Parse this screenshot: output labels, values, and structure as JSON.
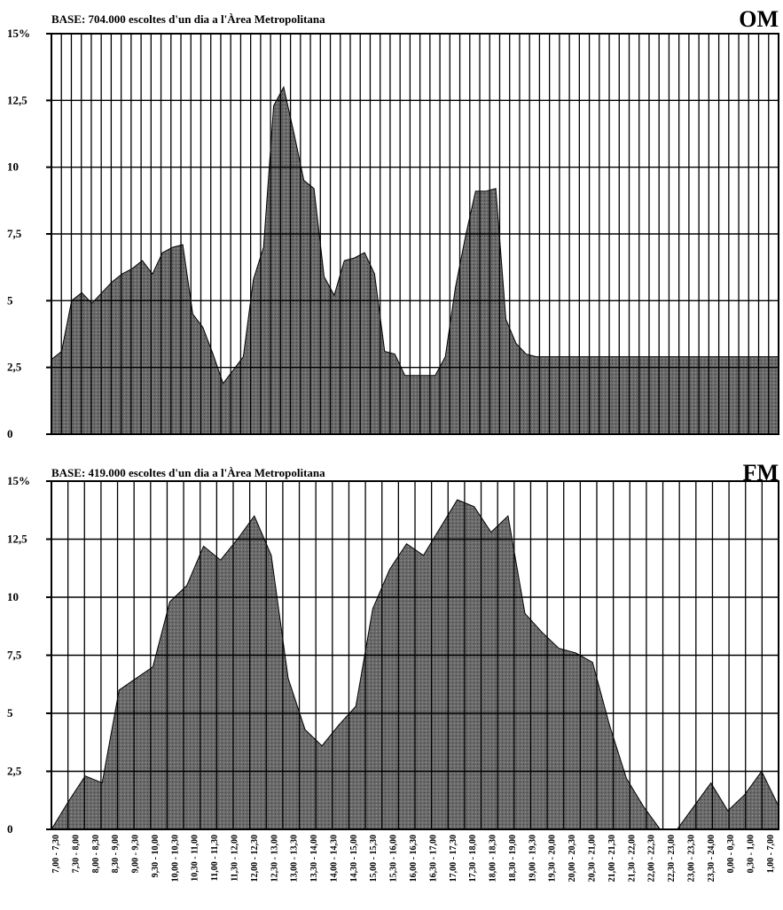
{
  "colors": {
    "fill": "#5a5a5a",
    "grid": "#000000",
    "background": "#ffffff"
  },
  "chart_data": [
    {
      "type": "area",
      "id": "om",
      "corner_label": "OM",
      "title": "BASE:  704.000 escoltes d'un dia a l'Àrea Metropolitana",
      "ytick_labels": [
        "0",
        "2,5",
        "5",
        "7,5",
        "10",
        "12,5",
        "15%"
      ],
      "ylim": [
        0,
        15
      ],
      "grid": true,
      "x": [
        0,
        1,
        2,
        3,
        4,
        5,
        6,
        7,
        8,
        9,
        10,
        11,
        12,
        13,
        14,
        15,
        16,
        17,
        18,
        19,
        20,
        21,
        22,
        23,
        24,
        25,
        26,
        27,
        28,
        29,
        30,
        31,
        32,
        33,
        34,
        35,
        36,
        37,
        38,
        39,
        40,
        41,
        42,
        43,
        44,
        45,
        46,
        47,
        48,
        49,
        50,
        51,
        52,
        53,
        54,
        55,
        56,
        57,
        58,
        59,
        60,
        61,
        62,
        63,
        64,
        65,
        66,
        67,
        68,
        69,
        70,
        71,
        72
      ],
      "values": [
        2.8,
        3.1,
        5.0,
        5.3,
        4.9,
        5.3,
        5.7,
        6.0,
        6.2,
        6.5,
        6.0,
        6.8,
        7.0,
        7.1,
        4.5,
        4.0,
        3.0,
        1.9,
        2.4,
        2.9,
        5.8,
        7.0,
        12.3,
        13.0,
        11.3,
        9.5,
        9.2,
        5.9,
        5.2,
        6.5,
        6.6,
        6.8,
        6.0,
        3.1,
        3.0,
        2.2,
        2.2,
        2.2,
        2.2,
        2.9,
        5.5,
        7.4,
        9.1,
        9.1,
        9.2,
        4.3,
        3.4,
        3.0,
        2.9,
        2.9,
        2.9,
        2.9,
        2.9,
        2.9,
        2.9,
        2.9,
        2.9,
        2.9,
        2.9,
        2.9,
        2.9,
        2.9,
        2.9,
        2.9,
        2.9,
        2.9,
        2.9,
        2.9,
        2.9,
        2.9,
        2.9,
        2.9,
        2.9
      ]
    },
    {
      "type": "area",
      "id": "fm",
      "corner_label": "FM",
      "title": "BASE:  419.000 escoltes d'un dia a l'Àrea Metropolitana",
      "ytick_labels": [
        "0",
        "2,5",
        "5",
        "7,5",
        "10",
        "12,5",
        "15%"
      ],
      "ylim": [
        0,
        15
      ],
      "grid": true,
      "values": [
        0.0,
        1.2,
        2.3,
        2.0,
        6.0,
        6.5,
        7.0,
        9.8,
        10.5,
        12.2,
        11.6,
        12.5,
        13.5,
        11.8,
        6.5,
        4.3,
        3.6,
        4.5,
        5.3,
        9.5,
        11.2,
        12.3,
        11.8,
        13.0,
        14.2,
        13.9,
        12.8,
        13.5,
        9.3,
        8.5,
        7.8,
        7.6,
        7.2,
        4.5,
        2.2,
        1.0,
        0.0,
        0.0,
        1.0,
        2.0,
        0.8,
        1.5,
        2.5,
        1.0
      ]
    }
  ],
  "x_tick_labels": [
    "7,00 - 7,30",
    "7,30 - 8,00",
    "8,00 - 8,30",
    "8,30 - 9,00",
    "9,00 - 9,30",
    "9,30 - 10,00",
    "10,00 - 10,30",
    "10,30 - 11,00",
    "11,00 - 11,30",
    "11,30 - 12,00",
    "12,00 - 12,30",
    "12,30 - 13,00",
    "13,00 - 13,30",
    "13,30 - 14,00",
    "14,00 - 14,30",
    "14,30 - 15,00",
    "15,00 - 15,30",
    "15,30 - 16,00",
    "16,00 - 16,30",
    "16,30 - 17,00",
    "17,00 - 17,30",
    "17,30 - 18,00",
    "18,00 - 18,30",
    "18,30 - 19,00",
    "19,00 - 19,30",
    "19,30 - 20,00",
    "20,00 - 20,30",
    "20,30 - 21,00",
    "21,00 - 21,30",
    "21,30 - 22,00",
    "22,00 - 22,30",
    "22,30 - 23,00",
    "23,00 - 23,30",
    "23,30 - 24,00",
    "0,00 - 0,30",
    "0,30 - 1,00",
    "1,00 - 7,00"
  ]
}
